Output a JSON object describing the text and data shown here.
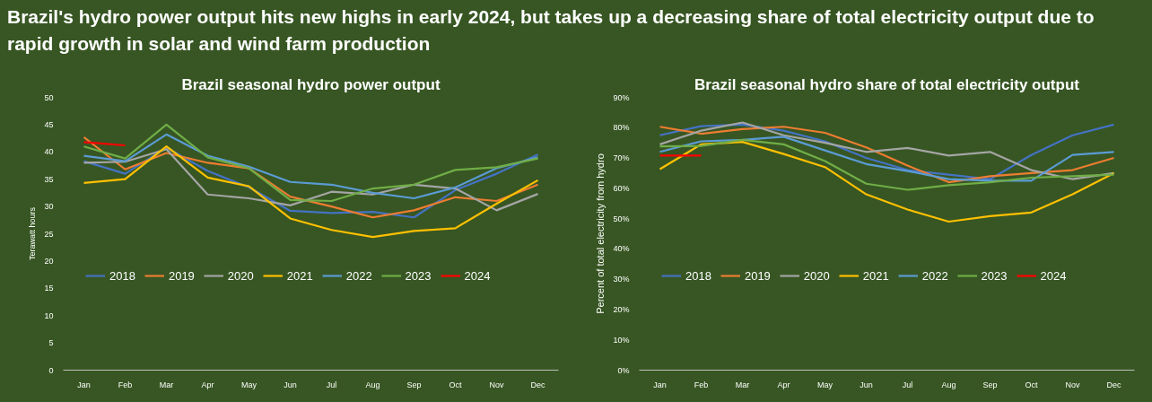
{
  "chart_data": [
    {
      "type": "other",
      "title": "Brazil's hydro power output hits new highs in early 2024, but takes up a decreasing share of total electricity output due to rapid growth in solar and wind farm production"
    },
    {
      "type": "line",
      "title": "Brazil seasonal hydro power output",
      "ylabel": "Terawatt hours",
      "categories": [
        "Jan",
        "Feb",
        "Mar",
        "Apr",
        "May",
        "Jun",
        "Jul",
        "Aug",
        "Sep",
        "Oct",
        "Nov",
        "Dec"
      ],
      "ylim": [
        0,
        50
      ],
      "yticks": [
        0,
        5,
        10,
        15,
        20,
        25,
        30,
        35,
        40,
        45,
        50
      ],
      "grid": false,
      "legend": "center",
      "series": [
        {
          "name": "2018",
          "color": "#4472c4",
          "values": [
            38.3,
            36,
            40.8,
            36.5,
            33.5,
            29.2,
            28.8,
            29,
            28,
            33,
            36,
            39.5
          ]
        },
        {
          "name": "2019",
          "color": "#ed7d31",
          "values": [
            42.7,
            36.8,
            39.8,
            38,
            37,
            31.8,
            30,
            28,
            29.3,
            31.7,
            31,
            34
          ]
        },
        {
          "name": "2020",
          "color": "#a5a5a5",
          "values": [
            38,
            38.2,
            40.5,
            32.2,
            31.5,
            30.2,
            32.7,
            32.2,
            34,
            33.3,
            29.3,
            32.3
          ]
        },
        {
          "name": "2021",
          "color": "#ffc000",
          "values": [
            34.3,
            35,
            41,
            35.3,
            33.7,
            27.8,
            25.7,
            24.4,
            25.5,
            26,
            30.5,
            34.8
          ]
        },
        {
          "name": "2022",
          "color": "#5b9bd5",
          "values": [
            39.3,
            38.3,
            43.2,
            39.3,
            37.3,
            34.5,
            34,
            32.5,
            31.5,
            33.5,
            37,
            39
          ]
        },
        {
          "name": "2023",
          "color": "#70ad47",
          "values": [
            41,
            38.8,
            45,
            39,
            37,
            31.2,
            31,
            33.3,
            34,
            36.7,
            37.2,
            38.8
          ]
        },
        {
          "name": "2024",
          "color": "#ff0000",
          "values": [
            41.8,
            41.2,
            null,
            null,
            null,
            null,
            null,
            null,
            null,
            null,
            null,
            null
          ]
        }
      ]
    },
    {
      "type": "line",
      "title": "Brazil seasonal hydro share of total electricity output",
      "ylabel": "Percent of total electricity from hydro",
      "categories": [
        "Jan",
        "Feb",
        "Mar",
        "Apr",
        "May",
        "Jun",
        "Jul",
        "Aug",
        "Sep",
        "Oct",
        "Nov",
        "Dec"
      ],
      "ylim": [
        0,
        90
      ],
      "yticks": [
        {
          "value": 0,
          "label": "0%"
        },
        {
          "value": 10,
          "label": "10%"
        },
        {
          "value": 20,
          "label": "20%"
        },
        {
          "value": 30,
          "label": "30%"
        },
        {
          "value": 40,
          "label": "40%"
        },
        {
          "value": 50,
          "label": "50%"
        },
        {
          "value": 60,
          "label": "60%"
        },
        {
          "value": 70,
          "label": "70%"
        },
        {
          "value": 80,
          "label": "80%"
        },
        {
          "value": 90,
          "label": "90%"
        }
      ],
      "grid": false,
      "legend": "center",
      "series": [
        {
          "name": "2018",
          "color": "#4472c4",
          "values": [
            77.5,
            80.5,
            81,
            79,
            75.5,
            70,
            66,
            64.5,
            63,
            71,
            77.5,
            81
          ]
        },
        {
          "name": "2019",
          "color": "#ed7d31",
          "values": [
            80.3,
            78,
            79.5,
            80.3,
            78.3,
            73.5,
            67.5,
            62,
            64,
            65,
            66,
            70
          ]
        },
        {
          "name": "2020",
          "color": "#a5a5a5",
          "values": [
            74.5,
            79,
            81.7,
            77.5,
            75,
            72,
            73.3,
            70.8,
            72,
            66,
            63,
            65
          ]
        },
        {
          "name": "2021",
          "color": "#ffc000",
          "values": [
            66.3,
            74.5,
            75.3,
            71.3,
            67,
            58,
            53,
            49,
            50.8,
            52,
            58,
            65
          ]
        },
        {
          "name": "2022",
          "color": "#5b9bd5",
          "values": [
            72,
            75.5,
            76,
            77,
            72.5,
            68,
            65.7,
            63,
            62.5,
            62.5,
            71,
            72
          ]
        },
        {
          "name": "2023",
          "color": "#70ad47",
          "values": [
            73.8,
            74,
            76,
            74.5,
            69,
            61.5,
            59.5,
            61,
            62,
            63.5,
            64,
            64.5
          ]
        },
        {
          "name": "2024",
          "color": "#ff0000",
          "values": [
            70.8,
            70.8,
            null,
            null,
            null,
            null,
            null,
            null,
            null,
            null,
            null,
            null
          ]
        }
      ]
    }
  ]
}
